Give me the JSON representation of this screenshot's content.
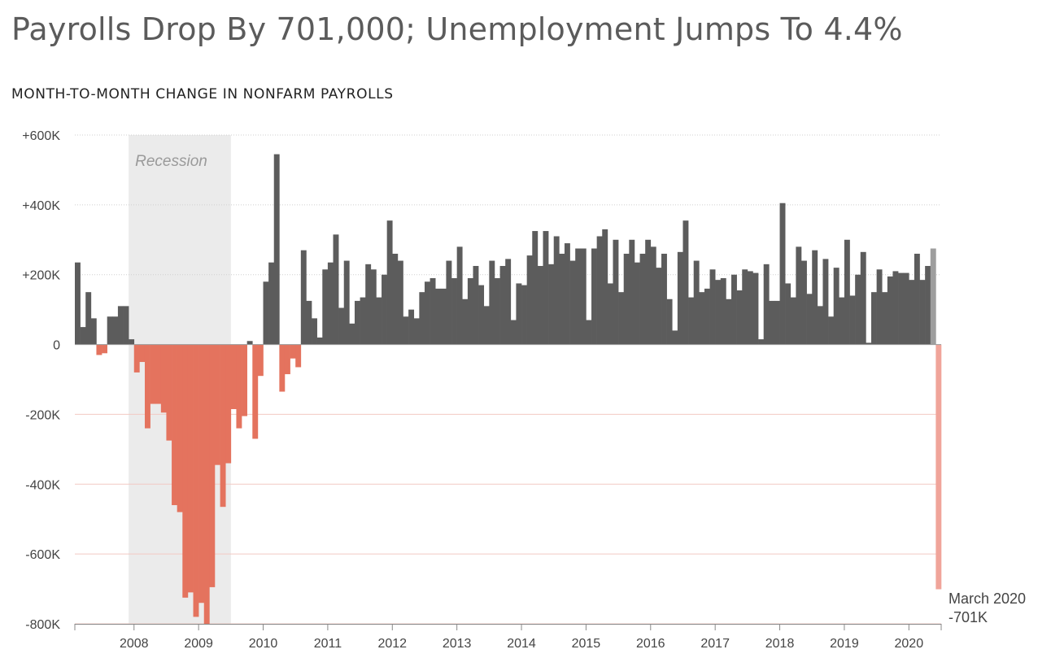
{
  "title": "Payrolls Drop By 701,000; Unemployment Jumps To 4.4%",
  "subtitle": "MONTH-TO-MONTH CHANGE IN NONFARM PAYROLLS",
  "chart_data": {
    "type": "bar",
    "x_start": "2007-02",
    "x_end": "2020-03",
    "ylim": [
      -800,
      600
    ],
    "y_unit": "K",
    "y_ticks": [
      {
        "value": 600,
        "label": "+600K"
      },
      {
        "value": 400,
        "label": "+400K"
      },
      {
        "value": 200,
        "label": "+200K"
      },
      {
        "value": 0,
        "label": "0"
      },
      {
        "value": -200,
        "label": "-200K"
      },
      {
        "value": -400,
        "label": "-400K"
      },
      {
        "value": -600,
        "label": "-600K"
      },
      {
        "value": -800,
        "label": "-800K"
      }
    ],
    "x_ticks": [
      "2008",
      "2009",
      "2010",
      "2011",
      "2012",
      "2013",
      "2014",
      "2015",
      "2016",
      "2017",
      "2018",
      "2019",
      "2020"
    ],
    "recession": {
      "start": "2007-12",
      "end": "2009-06",
      "label": "Recession"
    },
    "values": [
      235,
      50,
      150,
      75,
      -30,
      -25,
      80,
      80,
      110,
      110,
      15,
      -80,
      -50,
      -240,
      -170,
      -170,
      -195,
      -275,
      -460,
      -480,
      -725,
      -710,
      -780,
      -740,
      -800,
      -695,
      -345,
      -465,
      -340,
      -185,
      -240,
      -205,
      10,
      -270,
      -90,
      180,
      235,
      545,
      -135,
      -85,
      -40,
      -65,
      270,
      125,
      75,
      20,
      215,
      235,
      315,
      105,
      240,
      60,
      125,
      135,
      230,
      215,
      135,
      200,
      355,
      260,
      240,
      80,
      100,
      75,
      150,
      180,
      190,
      160,
      160,
      240,
      190,
      280,
      130,
      190,
      225,
      170,
      110,
      240,
      190,
      225,
      245,
      70,
      175,
      170,
      255,
      325,
      225,
      325,
      230,
      310,
      260,
      290,
      240,
      275,
      275,
      70,
      275,
      310,
      330,
      175,
      300,
      150,
      260,
      300,
      235,
      260,
      300,
      280,
      220,
      260,
      130,
      40,
      265,
      355,
      135,
      240,
      150,
      160,
      215,
      185,
      190,
      130,
      200,
      155,
      215,
      210,
      205,
      15,
      230,
      125,
      125,
      405,
      175,
      135,
      280,
      240,
      145,
      270,
      110,
      245,
      80,
      220,
      135,
      300,
      140,
      200,
      265,
      5,
      150,
      215,
      150,
      195,
      210,
      205,
      205,
      185,
      260,
      185,
      225,
      275,
      -701
    ],
    "annotation": {
      "label": "March 2020",
      "value": "-701K"
    }
  }
}
